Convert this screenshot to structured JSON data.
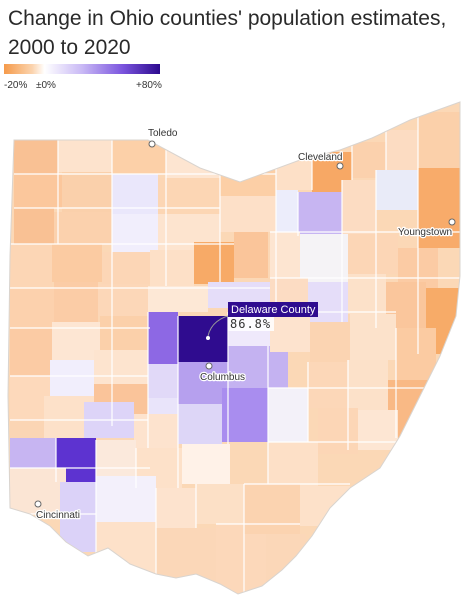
{
  "title": "Change in Ohio counties' population estimates, 2000 to 2020",
  "legend": {
    "min_label": "-20%",
    "mid_label": "±0%",
    "max_label": "+80%",
    "colors": [
      "#f59a4a",
      "#ffffff",
      "#2c0a8e"
    ]
  },
  "cities": [
    {
      "name": "Toledo"
    },
    {
      "name": "Cleveland"
    },
    {
      "name": "Youngstown"
    },
    {
      "name": "Columbus"
    },
    {
      "name": "Cincinnati"
    }
  ],
  "callout": {
    "county": "Delaware County",
    "value": "86.8%"
  },
  "map_data": {
    "type": "choropleth",
    "region": "Ohio",
    "unit": "counties",
    "scale": {
      "min": -20,
      "max": 80,
      "unit": "%"
    },
    "highlight": {
      "county": "Delaware County",
      "change_pct": 86.8
    }
  }
}
